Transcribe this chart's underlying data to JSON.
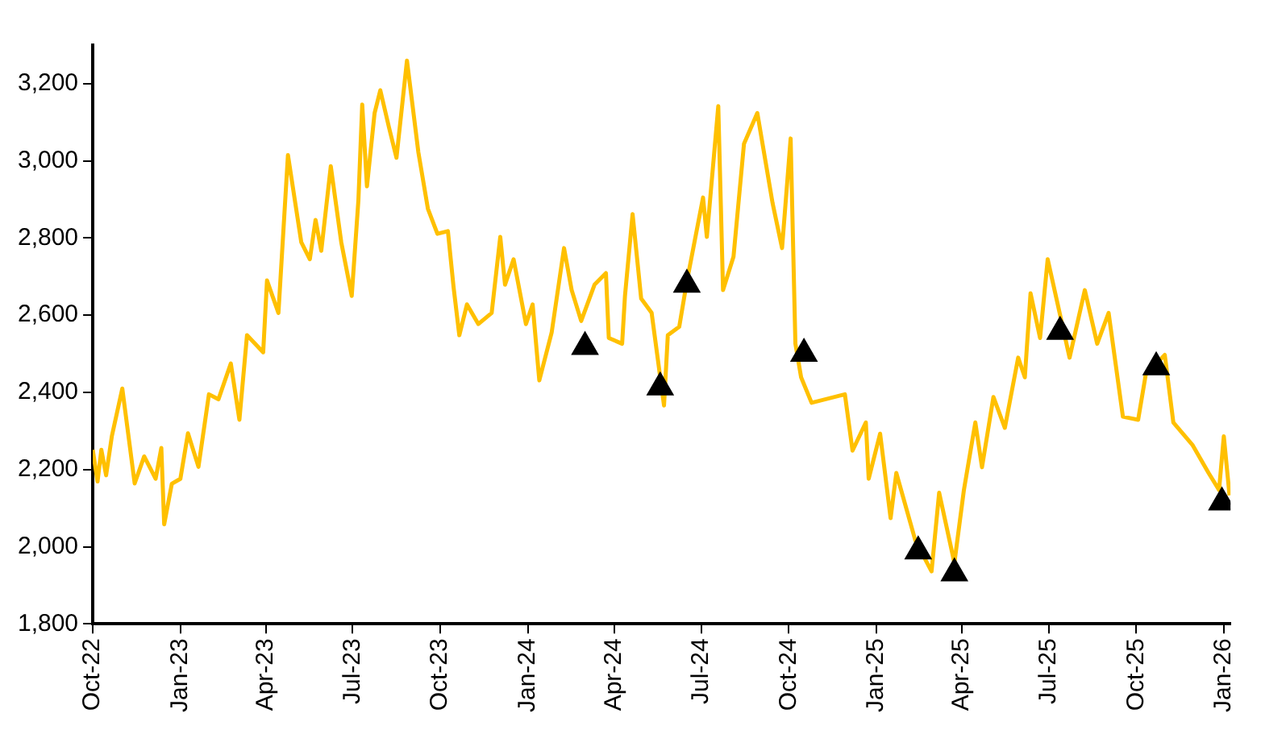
{
  "chart_data": {
    "type": "line",
    "xlim": [
      "2022-10-01",
      "2026-01-08"
    ],
    "ylim": [
      1800,
      3300
    ],
    "xticks": [
      {
        "value": "2022-10-01",
        "label": "Oct-22"
      },
      {
        "value": "2023-01-01",
        "label": "Jan-23"
      },
      {
        "value": "2023-04-01",
        "label": "Apr-23"
      },
      {
        "value": "2023-07-01",
        "label": "Jul-23"
      },
      {
        "value": "2023-10-01",
        "label": "Oct-23"
      },
      {
        "value": "2024-01-01",
        "label": "Jan-24"
      },
      {
        "value": "2024-04-01",
        "label": "Apr-24"
      },
      {
        "value": "2024-07-01",
        "label": "Jul-24"
      },
      {
        "value": "2024-10-01",
        "label": "Oct-24"
      },
      {
        "value": "2025-01-01",
        "label": "Jan-25"
      },
      {
        "value": "2025-04-01",
        "label": "Apr-25"
      },
      {
        "value": "2025-07-01",
        "label": "Jul-25"
      },
      {
        "value": "2025-10-01",
        "label": "Oct-25"
      },
      {
        "value": "2026-01-01",
        "label": "Jan-26"
      }
    ],
    "yticks": [
      {
        "value": 1800,
        "label": "1,800"
      },
      {
        "value": 2000,
        "label": "2,000"
      },
      {
        "value": 2200,
        "label": "2,200"
      },
      {
        "value": 2400,
        "label": "2,400"
      },
      {
        "value": 2600,
        "label": "2,600"
      },
      {
        "value": 2800,
        "label": "2,800"
      },
      {
        "value": 3000,
        "label": "3,000"
      },
      {
        "value": 3200,
        "label": "3,200"
      }
    ],
    "grid": false,
    "legend": false,
    "series": [
      {
        "type": "line",
        "color": "#ffc000",
        "marker": "none",
        "line_style": "solid",
        "x": [
          "2022-10-01",
          "2022-10-06",
          "2022-10-10",
          "2022-10-15",
          "2022-10-21",
          "2022-11-01",
          "2022-11-14",
          "2022-11-24",
          "2022-12-06",
          "2022-12-12",
          "2022-12-15",
          "2022-12-23",
          "2023-01-01",
          "2023-01-09",
          "2023-01-20",
          "2023-01-31",
          "2023-02-10",
          "2023-02-23",
          "2023-03-04",
          "2023-03-12",
          "2023-03-29",
          "2023-04-02",
          "2023-04-14",
          "2023-04-24",
          "2023-05-08",
          "2023-05-17",
          "2023-05-23",
          "2023-05-29",
          "2023-06-08",
          "2023-06-19",
          "2023-06-30",
          "2023-07-07",
          "2023-07-11",
          "2023-07-16",
          "2023-07-24",
          "2023-07-30",
          "2023-08-08",
          "2023-08-16",
          "2023-08-27",
          "2023-09-08",
          "2023-09-18",
          "2023-09-28",
          "2023-10-09",
          "2023-10-15",
          "2023-10-21",
          "2023-10-29",
          "2023-11-10",
          "2023-11-24",
          "2023-12-03",
          "2023-12-08",
          "2023-12-17",
          "2023-12-30",
          "2024-01-06",
          "2024-01-13",
          "2024-01-26",
          "2024-02-08",
          "2024-02-16",
          "2024-02-26",
          "2024-03-11",
          "2024-03-23",
          "2024-03-26",
          "2024-04-09",
          "2024-04-12",
          "2024-04-20",
          "2024-04-29",
          "2024-05-10",
          "2024-05-23",
          "2024-05-27",
          "2024-06-08",
          "2024-06-16",
          "2024-07-03",
          "2024-07-07",
          "2024-07-19",
          "2024-07-24",
          "2024-08-04",
          "2024-08-15",
          "2024-08-29",
          "2024-09-14",
          "2024-09-24",
          "2024-10-03",
          "2024-10-08",
          "2024-10-14",
          "2024-10-25",
          "2024-11-29",
          "2024-12-07",
          "2024-12-21",
          "2024-12-24",
          "2025-01-05",
          "2025-01-16",
          "2025-01-22",
          "2025-02-11",
          "2025-02-28",
          "2025-03-08",
          "2025-03-24",
          "2025-04-03",
          "2025-04-15",
          "2025-04-22",
          "2025-05-04",
          "2025-05-16",
          "2025-05-30",
          "2025-06-06",
          "2025-06-12",
          "2025-06-22",
          "2025-06-30",
          "2025-07-23",
          "2025-08-08",
          "2025-08-21",
          "2025-09-02",
          "2025-09-17",
          "2025-10-03",
          "2025-10-11",
          "2025-10-31",
          "2025-11-09",
          "2025-11-29",
          "2025-12-16",
          "2025-12-27",
          "2026-01-01",
          "2026-01-07"
        ],
        "values": [
          2251,
          2169,
          2251,
          2185,
          2286,
          2410,
          2164,
          2234,
          2176,
          2256,
          2058,
          2163,
          2176,
          2294,
          2207,
          2395,
          2382,
          2475,
          2329,
          2548,
          2504,
          2690,
          2606,
          3015,
          2789,
          2745,
          2847,
          2767,
          2986,
          2789,
          2650,
          2898,
          3146,
          2934,
          3124,
          3183,
          3088,
          3008,
          3260,
          3022,
          2876,
          2811,
          2818,
          2672,
          2548,
          2628,
          2577,
          2606,
          2803,
          2679,
          2745,
          2577,
          2628,
          2431,
          2555,
          2774,
          2665,
          2585,
          2679,
          2709,
          2541,
          2526,
          2650,
          2862,
          2643,
          2606,
          2366,
          2548,
          2570,
          2687,
          2905,
          2803,
          3142,
          2665,
          2752,
          3044,
          3124,
          2891,
          2774,
          3058,
          2526,
          2439,
          2373,
          2395,
          2249,
          2322,
          2176,
          2293,
          2074,
          2191,
          2016,
          1936,
          2140,
          1958,
          2147,
          2322,
          2206,
          2388,
          2308,
          2490,
          2439,
          2657,
          2541,
          2745,
          2490,
          2665,
          2526,
          2606,
          2337,
          2329,
          2446,
          2497,
          2322,
          2264,
          2191,
          2147,
          2286,
          2133
        ]
      },
      {
        "type": "scatter",
        "color": "#000000",
        "marker": "triangle",
        "x": [
          "2024-03-01",
          "2024-05-19",
          "2024-06-16",
          "2024-10-17",
          "2025-02-14",
          "2025-03-24",
          "2025-07-13",
          "2025-10-22",
          "2025-12-30"
        ],
        "values": [
          2518,
          2413,
          2679,
          2500,
          1988,
          1931,
          2557,
          2465,
          2115
        ]
      }
    ]
  }
}
